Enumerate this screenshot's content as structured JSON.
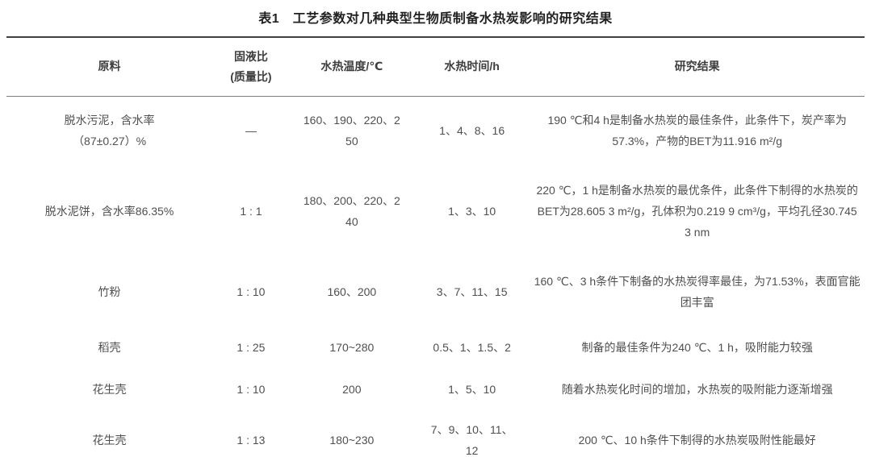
{
  "page": {
    "title": "表1　工艺参数对几种典型生物质制备水热炭影响的研究结果"
  },
  "colors": {
    "text": "#4f4f4f",
    "title_text": "#222222",
    "border_heavy": "#404040",
    "border_bottom": "#575757",
    "border_light": "#7d7d7d",
    "background": "#ffffff"
  },
  "table": {
    "headers": {
      "material": "原料",
      "ratio": "固液比\n(质量比)",
      "temperature": "水热温度/℃",
      "time": "水热时间/h",
      "result": "研究结果"
    },
    "rows": [
      {
        "material": "脱水污泥，含水率（87±0.27）%",
        "ratio": "—",
        "temperature": "160、190、220、250",
        "time": "1、4、8、16",
        "result": "190 ℃和4 h是制备水热炭的最佳条件，此条件下，炭产率为57.3%，产物的BET为11.916 m²/g"
      },
      {
        "material": "脱水泥饼，含水率86.35%",
        "ratio": "1 : 1",
        "temperature": "180、200、220、240",
        "time": "1、3、10",
        "result": "220 ℃，1 h是制备水热炭的最优条件，此条件下制得的水热炭的BET为28.605 3 m²/g，孔体积为0.219 9 cm³/g，平均孔径30.745 3 nm"
      },
      {
        "material": "竹粉",
        "ratio": "1 : 10",
        "temperature": "160、200",
        "time": "3、7、11、15",
        "result": "160 ℃、3 h条件下制备的水热炭得率最佳，为71.53%，表面官能团丰富"
      },
      {
        "material": "稻壳",
        "ratio": "1 : 25",
        "temperature": "170~280",
        "time": "0.5、1、1.5、2",
        "result": "制备的最佳条件为240 ℃、1 h，吸附能力较强"
      },
      {
        "material": "花生壳",
        "ratio": "1 : 10",
        "temperature": "200",
        "time": "1、5、10",
        "result": "随着水热炭化时间的增加，水热炭的吸附能力逐渐增强"
      },
      {
        "material": "花生壳",
        "ratio": "1 : 13",
        "temperature": "180~230",
        "time": "7、9、10、11、12",
        "result": "200 ℃、10 h条件下制得的水热炭吸附性能最好"
      }
    ]
  }
}
